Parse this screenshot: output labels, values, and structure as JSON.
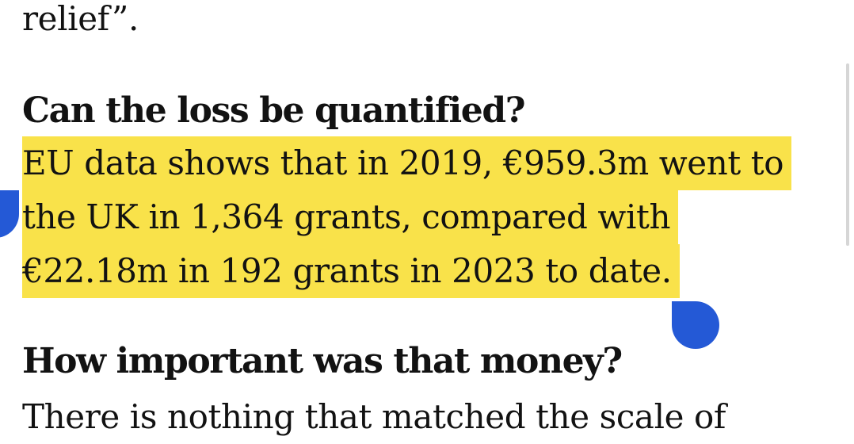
{
  "article": {
    "previous_tail": "relief”.",
    "section1": {
      "heading": "Can the loss be quantified?",
      "lines": [
        "EU data shows that in 2019, €959.3m went to",
        "the UK in 1,364 grants, compared with",
        "€22.18m in 192 grants in 2023 to date."
      ]
    },
    "section2": {
      "heading": "How important was that money?",
      "partial": "There is nothing that matched the scale of"
    }
  },
  "selection": {
    "highlight_color": "#f9e24a",
    "handle_color": "#2459d6"
  }
}
